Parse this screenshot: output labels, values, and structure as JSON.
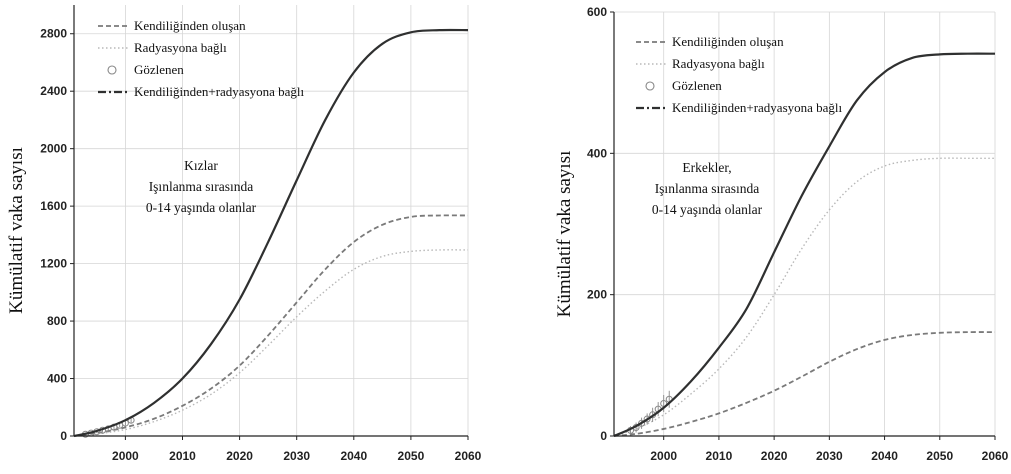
{
  "chart_data": [
    {
      "type": "line",
      "ylabel": "Kümülatif vaka sayısı",
      "xlabel": "",
      "xlim": [
        1991,
        2060
      ],
      "ylim": [
        0,
        3000
      ],
      "xticks": [
        2000,
        2010,
        2020,
        2030,
        2040,
        2050,
        2060
      ],
      "yticks": [
        0,
        400,
        800,
        1200,
        1600,
        2000,
        2400,
        2800
      ],
      "grid": true,
      "legend_position": "top-left",
      "annotation": [
        "Kızlar",
        "Işınlanma sırasında",
        "0-14 yaşında olanlar"
      ],
      "series": [
        {
          "name": "Kendiliğinden oluşan",
          "style": "dashed",
          "color": "#7a7a7a",
          "x": [
            1991,
            1995,
            2000,
            2005,
            2010,
            2015,
            2020,
            2025,
            2030,
            2035,
            2040,
            2045,
            2050,
            2055,
            2060
          ],
          "y": [
            0,
            20,
            60,
            120,
            210,
            330,
            490,
            700,
            930,
            1160,
            1350,
            1470,
            1525,
            1535,
            1535
          ]
        },
        {
          "name": "Radyasyona bağlı",
          "style": "dotted",
          "color": "#b8b8b8",
          "x": [
            1991,
            1995,
            2000,
            2005,
            2010,
            2015,
            2020,
            2025,
            2030,
            2035,
            2040,
            2045,
            2050,
            2055,
            2060
          ],
          "y": [
            0,
            15,
            45,
            100,
            180,
            290,
            440,
            630,
            830,
            1010,
            1160,
            1250,
            1285,
            1295,
            1295
          ]
        },
        {
          "name": "Gözlenen",
          "style": "markers",
          "color": "#888888",
          "x": [
            1993,
            1994,
            1995,
            1996,
            1997,
            1998,
            1999,
            2000,
            2001
          ],
          "y": [
            12,
            20,
            30,
            40,
            50,
            62,
            75,
            90,
            110
          ],
          "err": [
            6,
            8,
            10,
            10,
            12,
            12,
            14,
            16,
            18
          ]
        },
        {
          "name": "Kendiliğinden+radyasyona bağlı",
          "style": "solid",
          "color": "#2f3030",
          "x": [
            1991,
            1995,
            2000,
            2005,
            2010,
            2015,
            2020,
            2025,
            2030,
            2035,
            2040,
            2045,
            2050,
            2055,
            2060
          ],
          "y": [
            0,
            35,
            110,
            230,
            400,
            640,
            950,
            1350,
            1780,
            2200,
            2530,
            2730,
            2810,
            2825,
            2825
          ]
        }
      ]
    },
    {
      "type": "line",
      "ylabel": "Kümülatif vaka sayısı",
      "xlabel": "",
      "xlim": [
        1991,
        2060
      ],
      "ylim": [
        0,
        600
      ],
      "xticks": [
        2000,
        2010,
        2020,
        2030,
        2040,
        2050,
        2060
      ],
      "yticks": [
        0,
        200,
        400,
        600
      ],
      "grid": true,
      "legend_position": "top-left",
      "annotation": [
        "Erkekler,",
        "Işınlanma sırasında",
        "0-14 yaşında olanlar"
      ],
      "series": [
        {
          "name": "Kendiliğinden oluşan",
          "style": "dashed",
          "color": "#7a7a7a",
          "x": [
            1991,
            1995,
            2000,
            2005,
            2010,
            2015,
            2020,
            2025,
            2030,
            2035,
            2040,
            2045,
            2050,
            2055,
            2060
          ],
          "y": [
            0,
            3,
            10,
            20,
            32,
            47,
            64,
            84,
            105,
            123,
            136,
            143,
            146,
            147,
            147
          ]
        },
        {
          "name": "Radyasyona bağlı",
          "style": "dotted",
          "color": "#b8b8b8",
          "x": [
            1991,
            1995,
            2000,
            2005,
            2010,
            2015,
            2020,
            2025,
            2030,
            2035,
            2040,
            2045,
            2050,
            2055,
            2060
          ],
          "y": [
            0,
            10,
            30,
            60,
            95,
            140,
            200,
            265,
            320,
            360,
            382,
            390,
            393,
            393,
            393
          ]
        },
        {
          "name": "Gözlenen",
          "style": "markers",
          "color": "#888888",
          "x": [
            1994,
            1995,
            1996,
            1997,
            1998,
            1999,
            2000,
            2001
          ],
          "y": [
            8,
            12,
            18,
            24,
            30,
            38,
            46,
            52
          ],
          "err": [
            6,
            7,
            8,
            8,
            10,
            10,
            12,
            12
          ]
        },
        {
          "name": "Kendiliğinden+radyasyona bağlı",
          "style": "solid",
          "color": "#2f3030",
          "x": [
            1991,
            1995,
            2000,
            2005,
            2010,
            2015,
            2020,
            2025,
            2030,
            2035,
            2040,
            2045,
            2050,
            2055,
            2060
          ],
          "y": [
            0,
            14,
            40,
            78,
            125,
            180,
            260,
            340,
            410,
            475,
            515,
            535,
            540,
            541,
            541
          ]
        }
      ]
    }
  ]
}
